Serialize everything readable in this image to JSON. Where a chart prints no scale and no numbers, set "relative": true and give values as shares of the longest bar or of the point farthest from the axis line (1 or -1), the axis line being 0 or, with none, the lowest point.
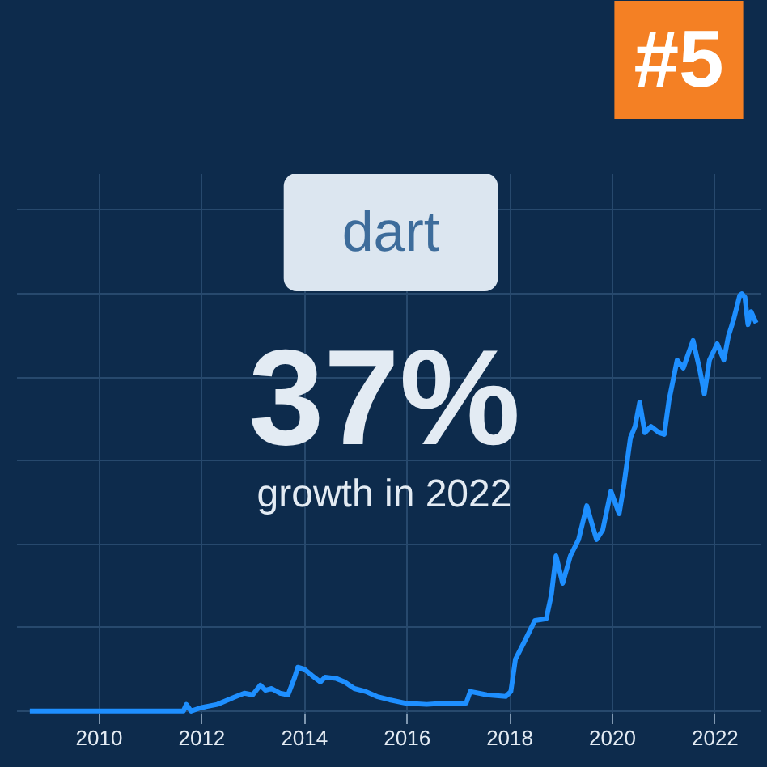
{
  "chart_data": {
    "type": "line",
    "relative": true,
    "title": "dart",
    "annotations": [
      "#5",
      "37%",
      "growth in 2022"
    ],
    "x": [
      2008.65,
      2011.64,
      2011.7,
      2011.79,
      2011.98,
      2012.3,
      2012.67,
      2012.83,
      2012.99,
      2013.14,
      2013.24,
      2013.36,
      2013.52,
      2013.68,
      2013.81,
      2013.87,
      2013.99,
      2014.15,
      2014.31,
      2014.4,
      2014.62,
      2014.78,
      2014.97,
      2015.19,
      2015.41,
      2015.66,
      2015.97,
      2016.38,
      2016.76,
      2017.15,
      2017.23,
      2017.55,
      2017.92,
      2018.02,
      2018.11,
      2018.27,
      2018.49,
      2018.71,
      2018.81,
      2018.9,
      2019.03,
      2019.18,
      2019.34,
      2019.5,
      2019.59,
      2019.69,
      2019.81,
      2019.97,
      2020.13,
      2020.22,
      2020.35,
      2020.44,
      2020.53,
      2020.63,
      2020.75,
      2020.91,
      2021.01,
      2021.1,
      2021.26,
      2021.38,
      2021.48,
      2021.57,
      2021.7,
      2021.79,
      2021.89,
      2022.04,
      2022.17,
      2022.26,
      2022.36,
      2022.48,
      2022.52,
      2022.58,
      2022.64,
      2022.7,
      2022.8
    ],
    "series": [
      {
        "color": "#1e8fff",
        "values": [
          0,
          0,
          0.016,
          0,
          0.008,
          0.016,
          0.035,
          0.043,
          0.039,
          0.062,
          0.05,
          0.054,
          0.043,
          0.039,
          0.081,
          0.105,
          0.101,
          0.085,
          0.07,
          0.081,
          0.078,
          0.07,
          0.054,
          0.047,
          0.035,
          0.027,
          0.019,
          0.016,
          0.019,
          0.019,
          0.047,
          0.039,
          0.035,
          0.047,
          0.124,
          0.163,
          0.217,
          0.221,
          0.279,
          0.372,
          0.306,
          0.372,
          0.411,
          0.492,
          0.453,
          0.411,
          0.434,
          0.527,
          0.473,
          0.539,
          0.655,
          0.682,
          0.74,
          0.667,
          0.682,
          0.667,
          0.663,
          0.744,
          0.841,
          0.822,
          0.857,
          0.888,
          0.818,
          0.76,
          0.841,
          0.88,
          0.841,
          0.899,
          0.938,
          0.996,
          1,
          0.992,
          0.926,
          0.957,
          0.93
        ]
      }
    ],
    "xlim": [
      2008.4,
      2022.9
    ],
    "xticks": [
      2010,
      2012,
      2014,
      2016,
      2018,
      2020,
      2022
    ],
    "grid": true,
    "line_style": "solid"
  }
}
